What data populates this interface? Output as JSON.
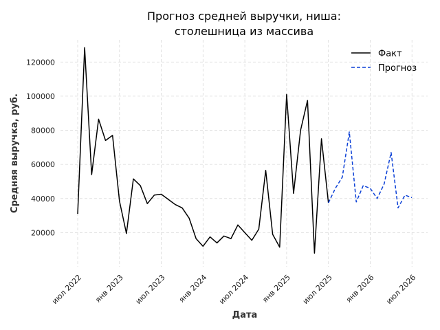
{
  "chart_data": {
    "type": "line",
    "title_lines": [
      "Прогноз средней выручки, ниша:",
      "столешница из массива"
    ],
    "xlabel": "Дата",
    "ylabel": "Средняя выручка, руб.",
    "x_ticks": [
      "июл 2022",
      "янв 2023",
      "июл 2023",
      "янв 2024",
      "июл 2024",
      "янв 2025",
      "июл 2025",
      "янв 2026",
      "июл 2026"
    ],
    "y_ticks": [
      "20000",
      "40000",
      "60000",
      "80000",
      "100000",
      "120000"
    ],
    "ylim": [
      0,
      133000
    ],
    "grid": true,
    "legend_position": "top-right",
    "series": [
      {
        "name": "Факт",
        "color": "#000000",
        "dash": "solid",
        "points": [
          [
            "2022-07",
            31000
          ],
          [
            "2022-08",
            128500
          ],
          [
            "2022-09",
            54000
          ],
          [
            "2022-10",
            86500
          ],
          [
            "2022-11",
            74000
          ],
          [
            "2022-12",
            77000
          ],
          [
            "2023-01",
            38500
          ],
          [
            "2023-02",
            19500
          ],
          [
            "2023-03",
            51500
          ],
          [
            "2023-04",
            47500
          ],
          [
            "2023-05",
            37000
          ],
          [
            "2023-06",
            42000
          ],
          [
            "2023-07",
            42500
          ],
          [
            "2023-08",
            39500
          ],
          [
            "2023-09",
            36500
          ],
          [
            "2023-10",
            34500
          ],
          [
            "2023-11",
            28500
          ],
          [
            "2023-12",
            16500
          ],
          [
            "2024-01",
            12000
          ],
          [
            "2024-02",
            17500
          ],
          [
            "2024-03",
            14000
          ],
          [
            "2024-04",
            18000
          ],
          [
            "2024-05",
            16500
          ],
          [
            "2024-06",
            24500
          ],
          [
            "2024-07",
            20000
          ],
          [
            "2024-08",
            15500
          ],
          [
            "2024-09",
            22000
          ],
          [
            "2024-10",
            56500
          ],
          [
            "2024-11",
            19000
          ],
          [
            "2024-12",
            11500
          ],
          [
            "2025-01",
            101000
          ],
          [
            "2025-02",
            43000
          ],
          [
            "2025-03",
            80000
          ],
          [
            "2025-04",
            97500
          ],
          [
            "2025-05",
            8000
          ],
          [
            "2025-06",
            75000
          ],
          [
            "2025-07",
            37500
          ]
        ]
      },
      {
        "name": "Прогноз",
        "color": "#0a3fd6",
        "dash": "dashed",
        "points": [
          [
            "2025-07",
            37500
          ],
          [
            "2025-08",
            46000
          ],
          [
            "2025-09",
            52500
          ],
          [
            "2025-10",
            79000
          ],
          [
            "2025-11",
            38000
          ],
          [
            "2025-12",
            47500
          ],
          [
            "2026-01",
            46000
          ],
          [
            "2026-02",
            40000
          ],
          [
            "2026-03",
            48500
          ],
          [
            "2026-04",
            67000
          ],
          [
            "2026-05",
            34500
          ],
          [
            "2026-06",
            42000
          ],
          [
            "2026-07",
            40500
          ]
        ]
      }
    ]
  }
}
